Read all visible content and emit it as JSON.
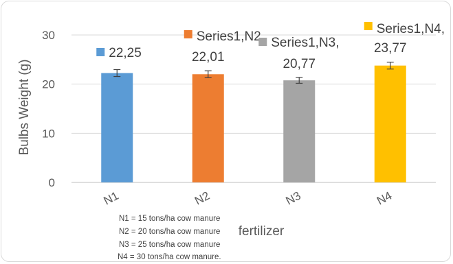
{
  "chart_data": {
    "type": "bar",
    "categories": [
      "N1",
      "N2",
      "N3",
      "N4"
    ],
    "values": [
      22.25,
      22.01,
      20.77,
      23.77
    ],
    "error": [
      0.7,
      0.7,
      0.6,
      0.7
    ],
    "colors": [
      "#5b9bd5",
      "#ed7d31",
      "#a5a5a5",
      "#ffc000"
    ],
    "data_labels": [
      [
        "22,25"
      ],
      [
        "Series1,N2,",
        "22,01"
      ],
      [
        "Series1,N3,",
        "20,77"
      ],
      [
        "Series1,N4,",
        "23,77"
      ]
    ],
    "xlabel": "fertilizer",
    "ylabel": "Bulbs Weight (g)",
    "ylim": [
      0,
      30
    ],
    "yticks": [
      0,
      10,
      20,
      30
    ],
    "grid": true,
    "notes": [
      "N1 = 15 tons/ha cow manure",
      "N2 = 20 tons/ha cow manure",
      "N3 = 25 tons/ha cow manure",
      "N4 = 30 tons/ha cow manure."
    ]
  }
}
